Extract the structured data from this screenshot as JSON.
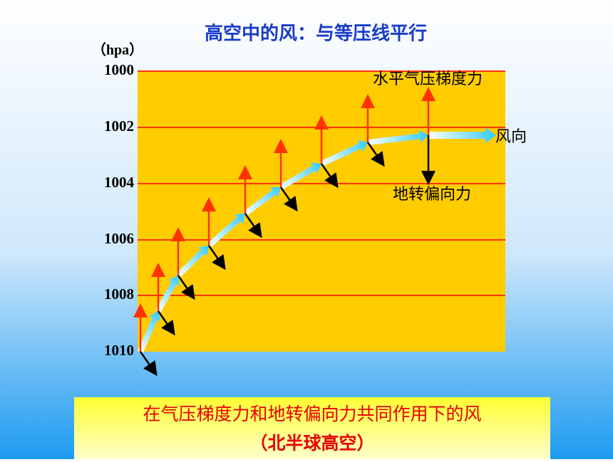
{
  "title": "高空中的风：与等压线平行",
  "unit": "（hpa）",
  "pressure_labels": [
    "1000",
    "1002",
    "1004",
    "1006",
    "1008",
    "1010"
  ],
  "annotations": {
    "pressure_gradient_force": "水平气压梯度力",
    "wind_direction": "风向",
    "coriolis_force": "地转偏向力"
  },
  "caption": {
    "line1": "在气压梯度力和地转偏向力共同作用下的风",
    "line2": "（北半球高空）"
  }
}
